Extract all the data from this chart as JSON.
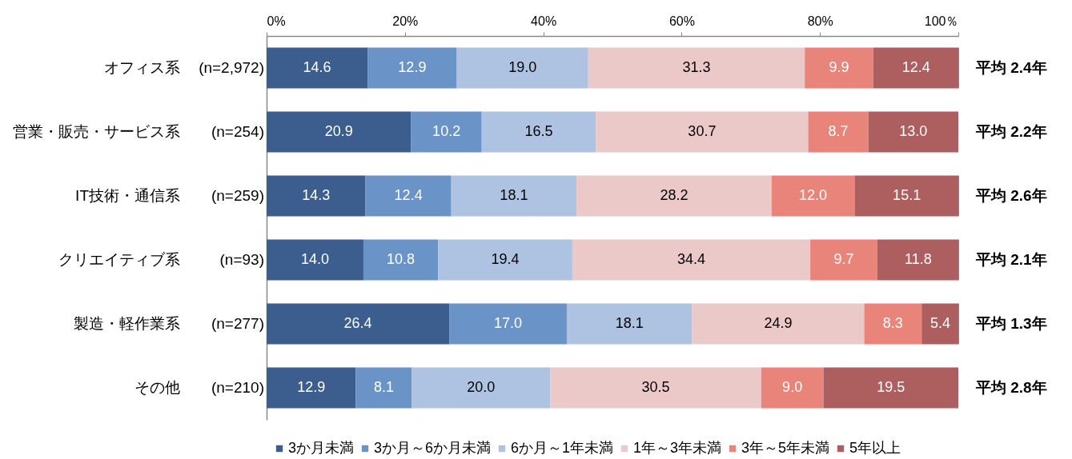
{
  "chart_data": {
    "type": "bar",
    "orientation": "horizontal",
    "stacked": true,
    "categories": [
      "オフィス系 (n=2,972)",
      "営業・販売・サービス系 (n=254)",
      "IT技術・通信系 (n=259)",
      "クリエイティブ系 (n=93)",
      "製造・軽作業系 (n=277)",
      "その他 (n=210)"
    ],
    "series": [
      {
        "name": "3か月未満",
        "color": "#3c5e8e",
        "values": [
          14.6,
          20.9,
          14.3,
          14.0,
          26.4,
          12.9
        ],
        "value_labels": [
          "14.6",
          "20.9",
          "14.3",
          "14.0",
          "26.4",
          "12.9"
        ]
      },
      {
        "name": "3か月～6か月未満",
        "color": "#6a93c8",
        "values": [
          12.9,
          10.2,
          12.4,
          10.8,
          17.0,
          8.1
        ],
        "value_labels": [
          "12.9",
          "10.2",
          "12.4",
          "10.8",
          "17.0",
          "8.1"
        ]
      },
      {
        "name": "6か月～1年未満",
        "color": "#adc3e1",
        "values": [
          19.0,
          16.5,
          18.1,
          19.4,
          18.1,
          20.0
        ],
        "value_labels": [
          "19.0",
          "16.5",
          "18.1",
          "19.4",
          "18.1",
          "20.0"
        ]
      },
      {
        "name": "1年～3年未満",
        "color": "#ecc9c9",
        "values": [
          31.3,
          30.7,
          28.2,
          34.4,
          24.9,
          30.5
        ],
        "value_labels": [
          "31.3",
          "30.7",
          "28.2",
          "34.4",
          "24.9",
          "30.5"
        ]
      },
      {
        "name": "3年～5年未満",
        "color": "#e8847a",
        "values": [
          9.9,
          8.7,
          12.0,
          9.7,
          8.3,
          9.0
        ],
        "value_labels": [
          "9.9",
          "8.7",
          "12.0",
          "9.7",
          "8.3",
          "9.0"
        ]
      },
      {
        "name": "5年以上",
        "color": "#ad5f5f",
        "values": [
          12.4,
          13.0,
          15.1,
          11.8,
          5.4,
          19.5
        ],
        "value_labels": [
          "12.4",
          "13.0",
          "15.1",
          "11.8",
          "5.4",
          "19.5"
        ]
      }
    ],
    "xlim": [
      0,
      100
    ],
    "xticks": [
      {
        "value": 0,
        "label": "0%"
      },
      {
        "value": 20,
        "label": "20%"
      },
      {
        "value": 40,
        "label": "40%"
      },
      {
        "value": 60,
        "label": "60%"
      },
      {
        "value": 80,
        "label": "80%"
      },
      {
        "value": 100,
        "label": "100％"
      }
    ],
    "annotations": [
      "平均 2.4年",
      "平均 2.2年",
      "平均 2.6年",
      "平均 2.1年",
      "平均 1.3年",
      "平均 2.8年"
    ],
    "legend": "bottom"
  }
}
